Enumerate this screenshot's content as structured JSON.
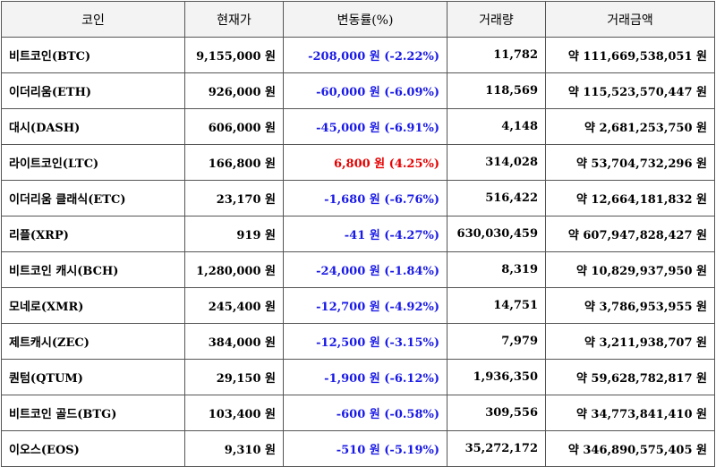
{
  "headers": {
    "coin": "코인",
    "price": "현재가",
    "change": "변동률(%)",
    "volume": "거래량",
    "amount": "거래금액"
  },
  "colors": {
    "down": "#1a1ae6",
    "up": "#e60000"
  },
  "rows": [
    {
      "name": "비트코인(BTC)",
      "price": "9,155,000 원",
      "change": "-208,000 원 (-2.22%)",
      "dir": "down",
      "volume": "11,782",
      "amount": "약 111,669,538,051 원"
    },
    {
      "name": "이더리움(ETH)",
      "price": "926,000 원",
      "change": "-60,000 원 (-6.09%)",
      "dir": "down",
      "volume": "118,569",
      "amount": "약 115,523,570,447 원"
    },
    {
      "name": "대시(DASH)",
      "price": "606,000 원",
      "change": "-45,000 원 (-6.91%)",
      "dir": "down",
      "volume": "4,148",
      "amount": "약 2,681,253,750 원"
    },
    {
      "name": "라이트코인(LTC)",
      "price": "166,800 원",
      "change": "6,800 원 (4.25%)",
      "dir": "up",
      "volume": "314,028",
      "amount": "약 53,704,732,296 원"
    },
    {
      "name": "이더리움 클래식(ETC)",
      "price": "23,170 원",
      "change": "-1,680 원 (-6.76%)",
      "dir": "down",
      "volume": "516,422",
      "amount": "약 12,664,181,832 원"
    },
    {
      "name": "리플(XRP)",
      "price": "919 원",
      "change": "-41 원 (-4.27%)",
      "dir": "down",
      "volume": "630,030,459",
      "amount": "약 607,947,828,427 원"
    },
    {
      "name": "비트코인 캐시(BCH)",
      "price": "1,280,000 원",
      "change": "-24,000 원 (-1.84%)",
      "dir": "down",
      "volume": "8,319",
      "amount": "약 10,829,937,950 원"
    },
    {
      "name": "모네로(XMR)",
      "price": "245,400 원",
      "change": "-12,700 원 (-4.92%)",
      "dir": "down",
      "volume": "14,751",
      "amount": "약 3,786,953,955 원"
    },
    {
      "name": "제트캐시(ZEC)",
      "price": "384,000 원",
      "change": "-12,500 원 (-3.15%)",
      "dir": "down",
      "volume": "7,979",
      "amount": "약 3,211,938,707 원"
    },
    {
      "name": "퀀텀(QTUM)",
      "price": "29,150 원",
      "change": "-1,900 원 (-6.12%)",
      "dir": "down",
      "volume": "1,936,350",
      "amount": "약 59,628,782,817 원"
    },
    {
      "name": "비트코인 골드(BTG)",
      "price": "103,400 원",
      "change": "-600 원 (-0.58%)",
      "dir": "down",
      "volume": "309,556",
      "amount": "약 34,773,841,410 원"
    },
    {
      "name": "이오스(EOS)",
      "price": "9,310 원",
      "change": "-510 원 (-5.19%)",
      "dir": "down",
      "volume": "35,272,172",
      "amount": "약 346,890,575,405 원"
    }
  ]
}
